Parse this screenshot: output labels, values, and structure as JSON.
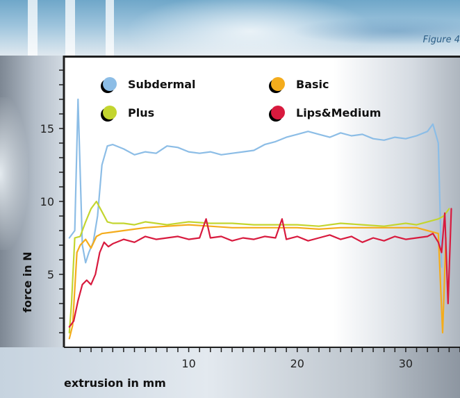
{
  "figure_label": "Figure 4",
  "chart_data": {
    "type": "line",
    "xlabel": "extrusion in mm",
    "ylabel": "force in N",
    "xlim": [
      -1.5,
      35
    ],
    "ylim": [
      0,
      20
    ],
    "xticks": [
      10,
      20,
      30
    ],
    "yticks": [
      5,
      10,
      15
    ],
    "grid": false,
    "legend_position": "top",
    "series": [
      {
        "name": "Subdermal",
        "color": "#8cbde6",
        "x": [
          -1.0,
          -0.5,
          -0.2,
          0.2,
          0.5,
          0.8,
          1.2,
          1.6,
          2.0,
          2.5,
          3,
          4,
          5,
          6,
          7,
          8,
          9,
          10,
          11,
          12,
          13,
          14,
          15,
          16,
          17,
          18,
          19,
          20,
          21,
          22,
          23,
          24,
          25,
          26,
          27,
          28,
          29,
          30,
          31,
          32,
          32.5,
          33.0,
          33.3
        ],
        "values": [
          7.5,
          8,
          17,
          7,
          5.8,
          6.5,
          7.2,
          9,
          12.5,
          13.8,
          13.9,
          13.6,
          13.2,
          13.4,
          13.3,
          13.8,
          13.7,
          13.4,
          13.3,
          13.4,
          13.2,
          13.3,
          13.4,
          13.5,
          13.9,
          14.1,
          14.4,
          14.6,
          14.8,
          14.6,
          14.4,
          14.7,
          14.5,
          14.6,
          14.3,
          14.2,
          14.4,
          14.3,
          14.5,
          14.8,
          15.3,
          14.0,
          5.5
        ]
      },
      {
        "name": "Basic",
        "color": "#f4ac1c",
        "x": [
          -1.0,
          -0.7,
          -0.3,
          0.0,
          0.5,
          1.0,
          1.5,
          2.0,
          3,
          4,
          5,
          6,
          8,
          10,
          12,
          14,
          16,
          18,
          20,
          22,
          24,
          26,
          28,
          30,
          31,
          32,
          33,
          33.4,
          33.7
        ],
        "values": [
          0.6,
          1.5,
          6.5,
          7,
          7.4,
          6.8,
          7.6,
          7.8,
          7.9,
          8.0,
          8.1,
          8.2,
          8.3,
          8.4,
          8.3,
          8.2,
          8.2,
          8.2,
          8.2,
          8.1,
          8.2,
          8.2,
          8.2,
          8.2,
          8.2,
          8.0,
          7.8,
          1.0,
          7.5
        ]
      },
      {
        "name": "Plus",
        "color": "#c3d52f",
        "x": [
          -1.0,
          -0.8,
          -0.5,
          0.0,
          0.5,
          1.0,
          1.5,
          2.0,
          2.5,
          3,
          4,
          5,
          6,
          8,
          10,
          12,
          14,
          16,
          18,
          20,
          22,
          24,
          26,
          28,
          30,
          31,
          32,
          33,
          33.5,
          34
        ],
        "values": [
          1.0,
          3.0,
          7.5,
          7.6,
          8.6,
          9.5,
          10.0,
          9.3,
          8.6,
          8.5,
          8.5,
          8.4,
          8.6,
          8.4,
          8.6,
          8.5,
          8.5,
          8.4,
          8.4,
          8.4,
          8.3,
          8.5,
          8.4,
          8.3,
          8.5,
          8.4,
          8.6,
          8.8,
          9.0,
          9.5
        ]
      },
      {
        "name": "Lips&Medium",
        "color": "#d81a3e",
        "x": [
          -1.0,
          -0.6,
          -0.2,
          0.2,
          0.6,
          1.0,
          1.4,
          1.8,
          2.2,
          2.6,
          3,
          4,
          5,
          6,
          7,
          8,
          9,
          10,
          11,
          11.6,
          12,
          13,
          14,
          15,
          16,
          17,
          18,
          18.6,
          19,
          20,
          21,
          22,
          23,
          24,
          25,
          26,
          27,
          28,
          29,
          30,
          31,
          32,
          32.5,
          33.0,
          33.3,
          33.6,
          33.9,
          34.2
        ],
        "values": [
          1.4,
          1.8,
          3.2,
          4.3,
          4.6,
          4.3,
          5.0,
          6.5,
          7.2,
          6.9,
          7.1,
          7.4,
          7.2,
          7.6,
          7.4,
          7.5,
          7.6,
          7.4,
          7.5,
          8.8,
          7.5,
          7.6,
          7.3,
          7.5,
          7.4,
          7.6,
          7.5,
          8.8,
          7.4,
          7.6,
          7.3,
          7.5,
          7.7,
          7.4,
          7.6,
          7.2,
          7.5,
          7.3,
          7.6,
          7.4,
          7.5,
          7.6,
          7.8,
          7.2,
          6.5,
          9.2,
          3.0,
          9.5
        ]
      }
    ]
  }
}
